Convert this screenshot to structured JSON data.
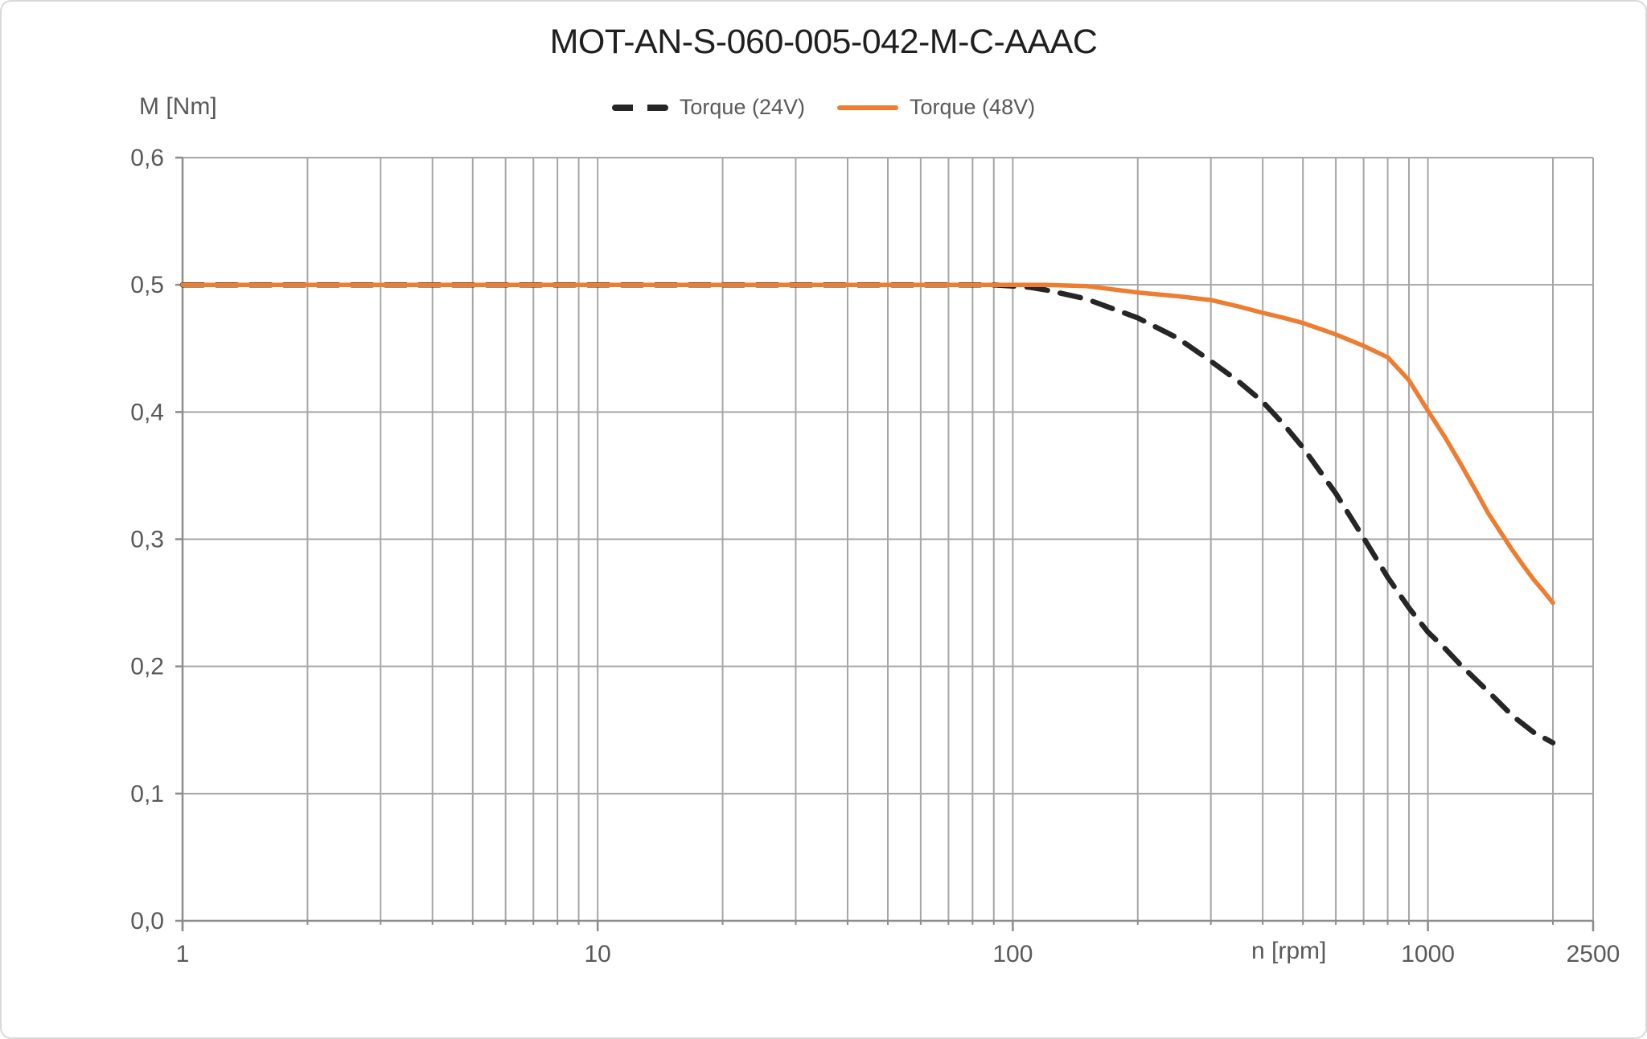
{
  "chart_data": {
    "type": "line",
    "title": "MOT-AN-S-060-005-042-M-C-AAAC",
    "ylabel": "M [Nm]",
    "xlabel": "n [rpm]",
    "x_scale": "log",
    "xlim": [
      1,
      2500
    ],
    "ylim": [
      0.0,
      0.6
    ],
    "grid": true,
    "legend_position": "top-center",
    "y_ticks": [
      {
        "value": 0.0,
        "label": "0,0"
      },
      {
        "value": 0.1,
        "label": "0,1"
      },
      {
        "value": 0.2,
        "label": "0,2"
      },
      {
        "value": 0.3,
        "label": "0,3"
      },
      {
        "value": 0.4,
        "label": "0,4"
      },
      {
        "value": 0.5,
        "label": "0,5"
      },
      {
        "value": 0.6,
        "label": "0,6"
      }
    ],
    "x_ticks": [
      {
        "value": 1,
        "label": "1"
      },
      {
        "value": 10,
        "label": "10"
      },
      {
        "value": 100,
        "label": "100"
      },
      {
        "value": 1000,
        "label": "1000"
      },
      {
        "value": 2500,
        "label": "2500"
      }
    ],
    "series": [
      {
        "name": "Torque (24V)",
        "color": "#262626",
        "style": "dashed",
        "points": [
          [
            1,
            0.5
          ],
          [
            2,
            0.5
          ],
          [
            3,
            0.5
          ],
          [
            5,
            0.5
          ],
          [
            7,
            0.5
          ],
          [
            10,
            0.5
          ],
          [
            15,
            0.5
          ],
          [
            20,
            0.5
          ],
          [
            30,
            0.5
          ],
          [
            50,
            0.5
          ],
          [
            70,
            0.5
          ],
          [
            90,
            0.5
          ],
          [
            100,
            0.499
          ],
          [
            110,
            0.498
          ],
          [
            120,
            0.496
          ],
          [
            150,
            0.489
          ],
          [
            200,
            0.474
          ],
          [
            250,
            0.458
          ],
          [
            300,
            0.44
          ],
          [
            350,
            0.424
          ],
          [
            400,
            0.408
          ],
          [
            450,
            0.39
          ],
          [
            500,
            0.372
          ],
          [
            600,
            0.336
          ],
          [
            700,
            0.301
          ],
          [
            800,
            0.27
          ],
          [
            900,
            0.246
          ],
          [
            1000,
            0.227
          ],
          [
            1100,
            0.214
          ],
          [
            1200,
            0.201
          ],
          [
            1400,
            0.18
          ],
          [
            1600,
            0.161
          ],
          [
            1800,
            0.148
          ],
          [
            2000,
            0.14
          ]
        ]
      },
      {
        "name": "Torque (48V)",
        "color": "#ED7D31",
        "style": "solid",
        "points": [
          [
            1,
            0.5
          ],
          [
            2,
            0.5
          ],
          [
            3,
            0.5
          ],
          [
            5,
            0.5
          ],
          [
            7,
            0.5
          ],
          [
            10,
            0.5
          ],
          [
            15,
            0.5
          ],
          [
            20,
            0.5
          ],
          [
            30,
            0.5
          ],
          [
            50,
            0.5
          ],
          [
            70,
            0.5
          ],
          [
            100,
            0.5
          ],
          [
            120,
            0.5
          ],
          [
            150,
            0.499
          ],
          [
            200,
            0.494
          ],
          [
            250,
            0.491
          ],
          [
            300,
            0.488
          ],
          [
            350,
            0.483
          ],
          [
            400,
            0.478
          ],
          [
            450,
            0.474
          ],
          [
            500,
            0.47
          ],
          [
            600,
            0.461
          ],
          [
            700,
            0.452
          ],
          [
            800,
            0.443
          ],
          [
            900,
            0.425
          ],
          [
            1000,
            0.401
          ],
          [
            1100,
            0.38
          ],
          [
            1200,
            0.359
          ],
          [
            1300,
            0.339
          ],
          [
            1400,
            0.32
          ],
          [
            1500,
            0.305
          ],
          [
            1600,
            0.291
          ],
          [
            1700,
            0.279
          ],
          [
            1800,
            0.268
          ],
          [
            1900,
            0.259
          ],
          [
            2000,
            0.25
          ]
        ]
      }
    ]
  },
  "colors": {
    "grid": "#A6A6A6",
    "axis": "#8C8C8C",
    "tick_text": "#595959",
    "title_text": "#1F1F1F",
    "legend_text": "#595959",
    "background": "#FFFFFF",
    "frame_border": "#D9D9D9"
  }
}
